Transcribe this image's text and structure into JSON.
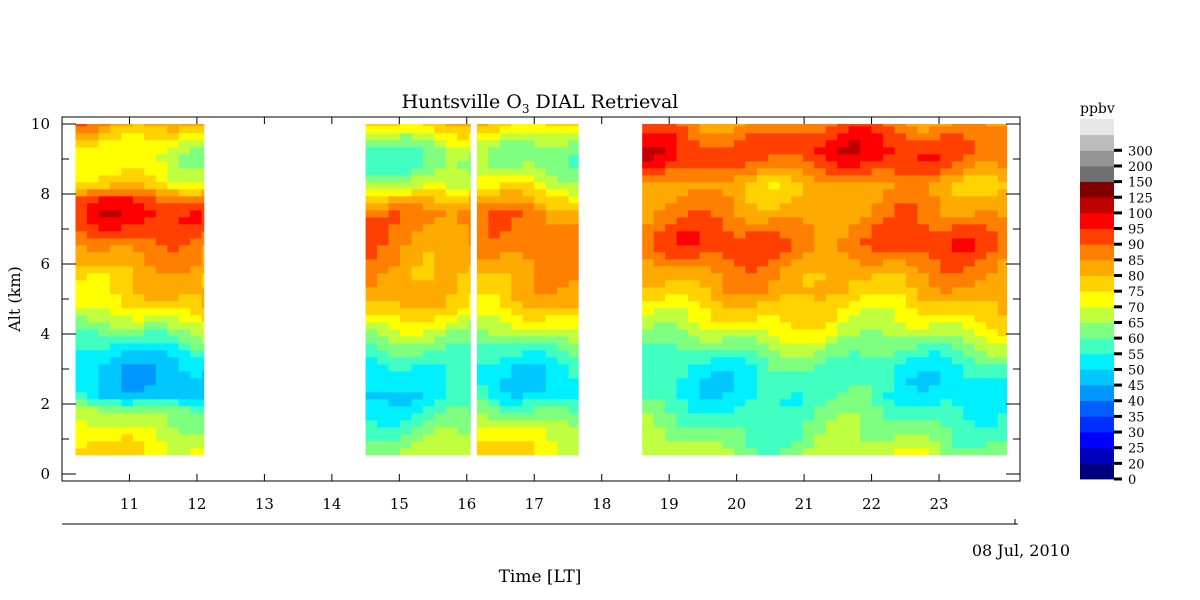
{
  "chart_data": {
    "type": "heatmap",
    "title_parts": [
      "Huntsville O",
      "3",
      " DIAL Retrieval"
    ],
    "xlabel": "Time [LT]",
    "ylabel": "Alt (km)",
    "date_label": "08 Jul, 2010",
    "xlim": [
      10.0,
      24.2
    ],
    "ylim": [
      -0.2,
      10.2
    ],
    "x_ticks": [
      "11",
      "12",
      "13",
      "14",
      "15",
      "16",
      "17",
      "18",
      "19",
      "20",
      "21",
      "22",
      "23"
    ],
    "y_ticks": [
      "0",
      "2",
      "4",
      "6",
      "8",
      "10"
    ],
    "alt_range": [
      0.55,
      10.0
    ],
    "data_segments": [
      {
        "start": 10.2,
        "end": 12.1,
        "profile": [
          70,
          67,
          63,
          60,
          45,
          44,
          45,
          50,
          57,
          65,
          72,
          74,
          74,
          78,
          80,
          86,
          90,
          85,
          70,
          66,
          64,
          70,
          80
        ]
      },
      {
        "start": 14.5,
        "end": 16.05,
        "profile": [
          65,
          60,
          56,
          50,
          46,
          47,
          48,
          52,
          58,
          66,
          73,
          75,
          76,
          79,
          81,
          83,
          86,
          78,
          65,
          58,
          56,
          62,
          72
        ]
      },
      {
        "start": 16.15,
        "end": 17.65,
        "profile": [
          70,
          68,
          65,
          58,
          50,
          48,
          50,
          55,
          62,
          68,
          74,
          75,
          76,
          78,
          80,
          80,
          80,
          74,
          66,
          60,
          58,
          64,
          74
        ]
      },
      {
        "start": 18.6,
        "end": 24.0,
        "profile": [
          62,
          58,
          56,
          53,
          50,
          50,
          52,
          57,
          63,
          68,
          72,
          76,
          78,
          82,
          86,
          84,
          80,
          78,
          76,
          84,
          90,
          88,
          82
        ]
      }
    ],
    "colorbar": {
      "unit": "ppbv",
      "levels": [
        "0",
        "20",
        "25",
        "30",
        "35",
        "40",
        "45",
        "50",
        "55",
        "60",
        "65",
        "70",
        "75",
        "80",
        "85",
        "90",
        "95",
        "100",
        "125",
        "150",
        "200",
        "300"
      ],
      "colors": [
        "#00007f",
        "#0000bf",
        "#0000ff",
        "#0030ff",
        "#0060ff",
        "#0096ff",
        "#00c8ff",
        "#00f0ff",
        "#40ffc0",
        "#7fff7f",
        "#bfff40",
        "#ffff00",
        "#ffd200",
        "#ffaa00",
        "#ff7f00",
        "#ff4000",
        "#ff0000",
        "#bf0000",
        "#800000",
        "#707070",
        "#959595",
        "#bdbdbd",
        "#e6e6e6"
      ]
    }
  }
}
